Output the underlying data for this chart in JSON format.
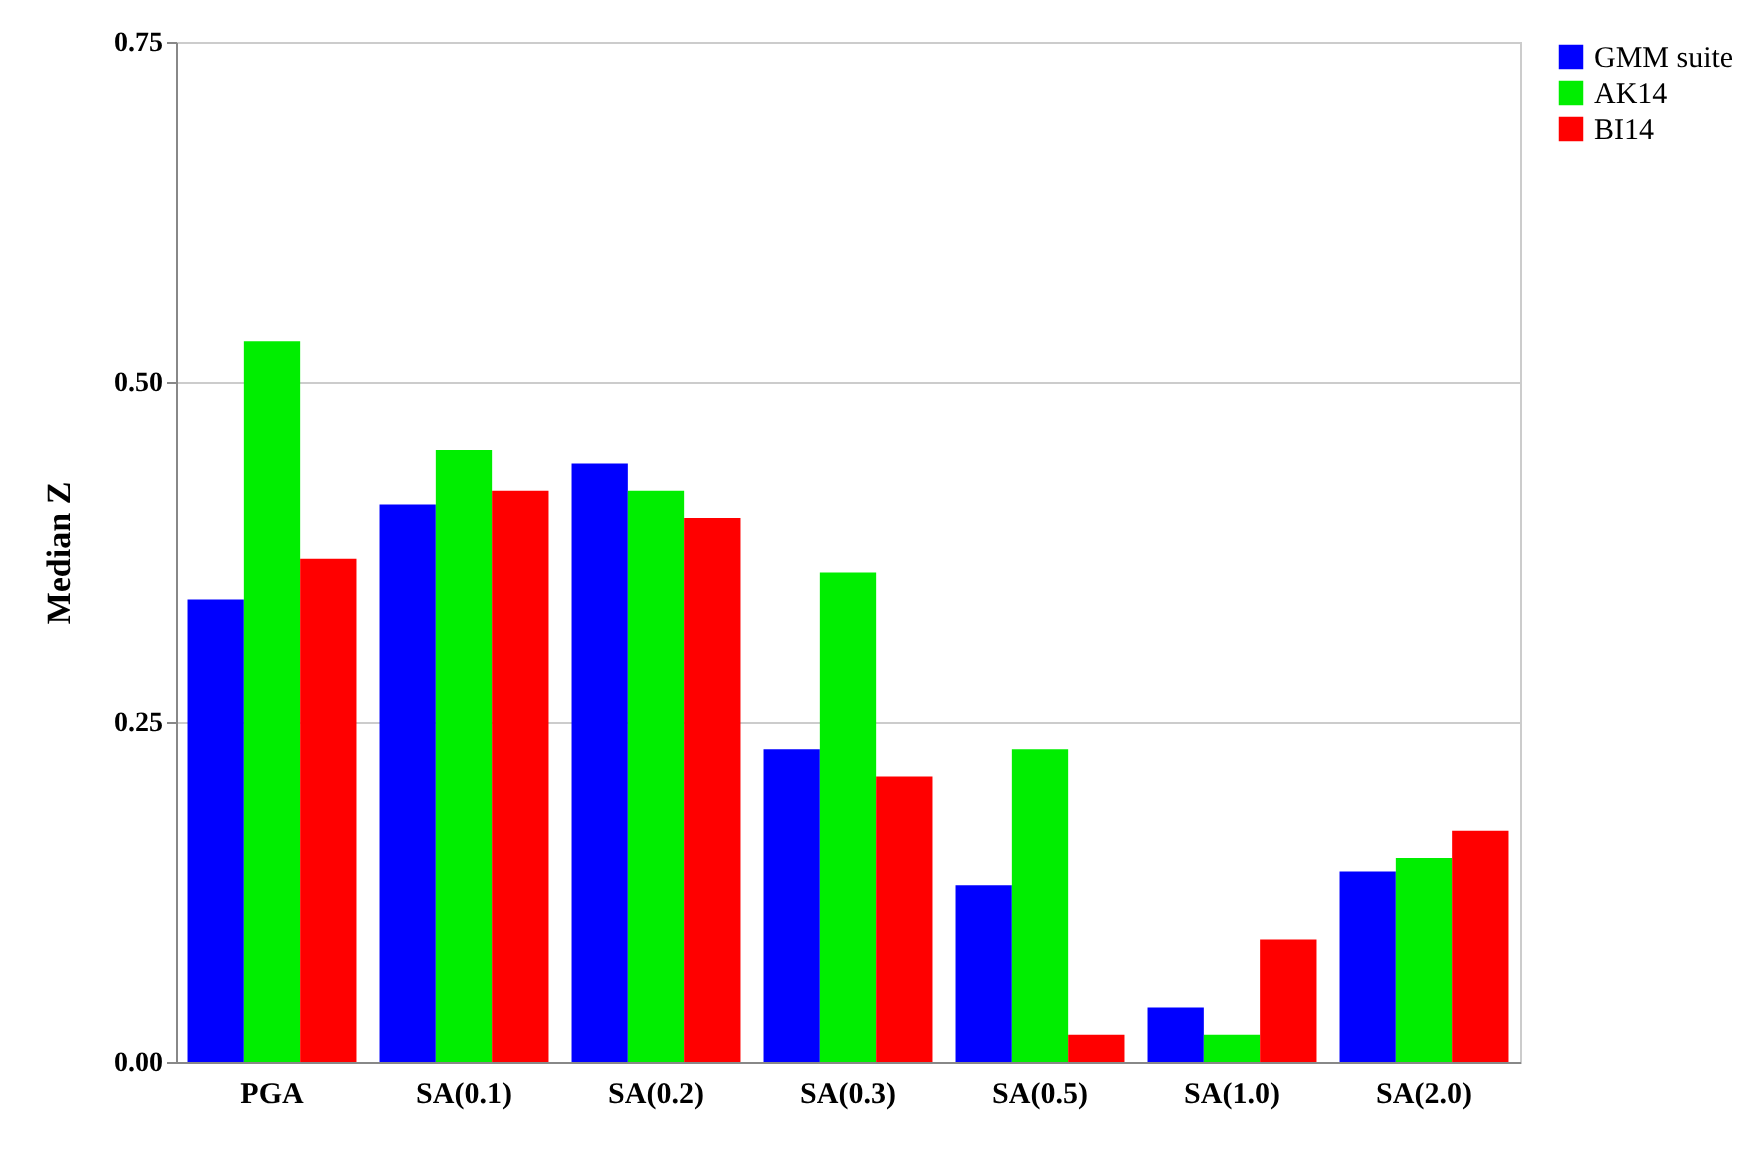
{
  "chart_data": {
    "type": "bar",
    "ylabel": "Median Z",
    "categories": [
      "PGA",
      "SA(0.1)",
      "SA(0.2)",
      "SA(0.3)",
      "SA(0.5)",
      "SA(1.0)",
      "SA(2.0)"
    ],
    "series": [
      {
        "name": "GMM suite",
        "color": "#0000ff",
        "values": [
          0.34,
          0.41,
          0.44,
          0.23,
          0.13,
          0.04,
          0.14
        ]
      },
      {
        "name": "AK14",
        "color": "#00ee00",
        "values": [
          0.53,
          0.45,
          0.42,
          0.36,
          0.23,
          0.02,
          0.15
        ]
      },
      {
        "name": "BI14",
        "color": "#ff0000",
        "values": [
          0.37,
          0.42,
          0.4,
          0.21,
          0.02,
          0.09,
          0.17
        ]
      }
    ],
    "ylim": [
      0,
      0.75
    ],
    "yticks": [
      {
        "value": 0,
        "label": "0.00"
      },
      {
        "value": 0.25,
        "label": "0.25"
      },
      {
        "value": 0.5,
        "label": "0.50"
      },
      {
        "value": 0.75,
        "label": "0.75"
      }
    ],
    "grid": "y",
    "legend": "right"
  }
}
